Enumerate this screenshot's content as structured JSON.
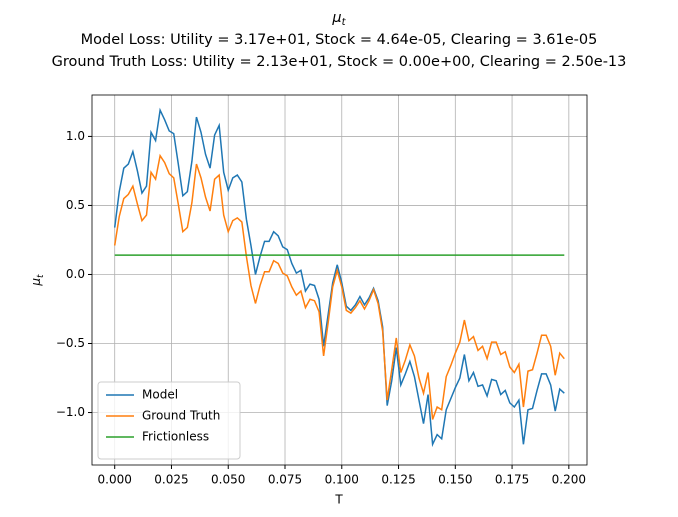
{
  "chart_data": {
    "type": "line",
    "title": {
      "symbol": "μ",
      "subscript": "t"
    },
    "subtitle": [
      "Model Loss: Utility = 3.17e+01, Stock = 4.64e-05, Clearing = 3.61e-05",
      "Ground Truth Loss: Utility = 2.13e+01, Stock = 0.00e+00, Clearing = 2.50e-13"
    ],
    "xlabel": "T",
    "ylabel": {
      "symbol": "μ",
      "subscript": "t"
    },
    "x": [
      0,
      0.002,
      0.004,
      0.006,
      0.008,
      0.01,
      0.012,
      0.014,
      0.016,
      0.018,
      0.02,
      0.022,
      0.024,
      0.026,
      0.028,
      0.03,
      0.032,
      0.034,
      0.036,
      0.038,
      0.04,
      0.042,
      0.044,
      0.046,
      0.048,
      0.05,
      0.052,
      0.054,
      0.056,
      0.058,
      0.06,
      0.062,
      0.064,
      0.066,
      0.068,
      0.07,
      0.072,
      0.074,
      0.076,
      0.078,
      0.08,
      0.082,
      0.084,
      0.086,
      0.088,
      0.09,
      0.092,
      0.094,
      0.096,
      0.098,
      0.1,
      0.102,
      0.104,
      0.106,
      0.108,
      0.11,
      0.112,
      0.114,
      0.116,
      0.118,
      0.12,
      0.122,
      0.124,
      0.126,
      0.128,
      0.13,
      0.132,
      0.134,
      0.136,
      0.138,
      0.14,
      0.142,
      0.144,
      0.146,
      0.148,
      0.15,
      0.152,
      0.154,
      0.156,
      0.158,
      0.16,
      0.162,
      0.164,
      0.166,
      0.168,
      0.17,
      0.172,
      0.174,
      0.176,
      0.178,
      0.18,
      0.182,
      0.184,
      0.186,
      0.188,
      0.19,
      0.192,
      0.194,
      0.196,
      0.198
    ],
    "series": [
      {
        "name": "Model",
        "color": "#1f77b4",
        "values": [
          0.34,
          0.6,
          0.77,
          0.8,
          0.89,
          0.75,
          0.59,
          0.64,
          1.03,
          0.97,
          1.19,
          1.12,
          1.04,
          1.02,
          0.8,
          0.57,
          0.6,
          0.82,
          1.14,
          1.03,
          0.87,
          0.77,
          1.01,
          1.08,
          0.74,
          0.61,
          0.7,
          0.72,
          0.67,
          0.4,
          0.21,
          0,
          0.13,
          0.24,
          0.24,
          0.31,
          0.28,
          0.2,
          0.18,
          0.08,
          0.01,
          0.03,
          -0.12,
          -0.07,
          -0.08,
          -0.18,
          -0.52,
          -0.29,
          -0.06,
          0.07,
          -0.06,
          -0.23,
          -0.26,
          -0.22,
          -0.16,
          -0.22,
          -0.17,
          -0.1,
          -0.19,
          -0.38,
          -0.95,
          -0.77,
          -0.53,
          -0.8,
          -0.72,
          -0.63,
          -0.74,
          -0.91,
          -1.08,
          -0.87,
          -1.23,
          -1.16,
          -1.19,
          -0.98,
          -0.9,
          -0.82,
          -0.75,
          -0.58,
          -0.77,
          -0.71,
          -0.81,
          -0.8,
          -0.88,
          -0.76,
          -0.77,
          -0.87,
          -0.84,
          -0.93,
          -0.96,
          -0.91,
          -1.23,
          -0.98,
          -0.97,
          -0.84,
          -0.72,
          -0.72,
          -0.8,
          -0.99,
          -0.83,
          -0.86
        ]
      },
      {
        "name": "Ground Truth",
        "color": "#ff7f0e",
        "values": [
          0.21,
          0.42,
          0.55,
          0.58,
          0.64,
          0.51,
          0.39,
          0.43,
          0.74,
          0.69,
          0.86,
          0.81,
          0.73,
          0.7,
          0.51,
          0.31,
          0.34,
          0.52,
          0.8,
          0.7,
          0.56,
          0.46,
          0.69,
          0.72,
          0.43,
          0.31,
          0.39,
          0.41,
          0.38,
          0.13,
          -0.08,
          -0.21,
          -0.08,
          0.02,
          0.02,
          0.1,
          0.08,
          0.01,
          -0.01,
          -0.09,
          -0.15,
          -0.12,
          -0.24,
          -0.18,
          -0.19,
          -0.27,
          -0.59,
          -0.35,
          -0.09,
          0.03,
          -0.09,
          -0.26,
          -0.28,
          -0.24,
          -0.19,
          -0.25,
          -0.19,
          -0.11,
          -0.21,
          -0.41,
          -0.91,
          -0.69,
          -0.46,
          -0.71,
          -0.62,
          -0.51,
          -0.59,
          -0.75,
          -0.86,
          -0.71,
          -1.05,
          -0.96,
          -0.98,
          -0.74,
          -0.66,
          -0.57,
          -0.49,
          -0.33,
          -0.48,
          -0.45,
          -0.55,
          -0.52,
          -0.61,
          -0.49,
          -0.49,
          -0.58,
          -0.56,
          -0.67,
          -0.71,
          -0.65,
          -0.96,
          -0.7,
          -0.69,
          -0.57,
          -0.44,
          -0.44,
          -0.52,
          -0.73,
          -0.57,
          -0.61
        ]
      },
      {
        "name": "Frictionless",
        "color": "#2ca02c",
        "x": [
          0,
          0.198
        ],
        "values": [
          0.14,
          0.14
        ]
      }
    ],
    "xlim": [
      -0.01,
      0.208
    ],
    "ylim": [
      -1.38,
      1.3
    ],
    "xticks": [
      {
        "value": 0,
        "label": "0.000"
      },
      {
        "value": 0.025,
        "label": "0.025"
      },
      {
        "value": 0.05,
        "label": "0.050"
      },
      {
        "value": 0.075,
        "label": "0.075"
      },
      {
        "value": 0.1,
        "label": "0.100"
      },
      {
        "value": 0.125,
        "label": "0.125"
      },
      {
        "value": 0.15,
        "label": "0.150"
      },
      {
        "value": 0.175,
        "label": "0.175"
      },
      {
        "value": 0.2,
        "label": "0.200"
      }
    ],
    "yticks": [
      {
        "value": -1,
        "label": "−1.0"
      },
      {
        "value": -0.5,
        "label": "−0.5"
      },
      {
        "value": 0,
        "label": "0.0"
      },
      {
        "value": 0.5,
        "label": "0.5"
      },
      {
        "value": 1,
        "label": "1.0"
      }
    ],
    "grid": true,
    "legend": "lower left"
  }
}
